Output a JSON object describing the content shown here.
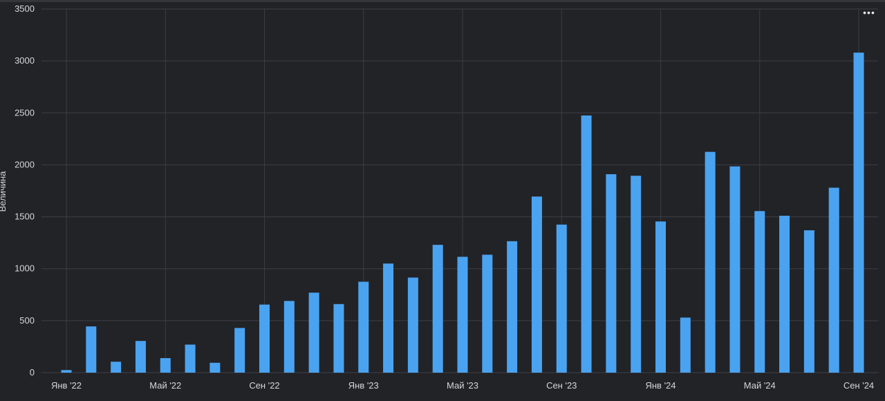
{
  "chart_data": {
    "type": "bar",
    "ylabel": "Величина",
    "ylim": [
      0,
      3500
    ],
    "yticks": [
      0,
      500,
      1000,
      1500,
      2000,
      2500,
      3000,
      3500
    ],
    "categories": [
      "2022-01",
      "2022-02",
      "2022-03",
      "2022-04",
      "2022-05",
      "2022-06",
      "2022-07",
      "2022-08",
      "2022-09",
      "2022-10",
      "2022-11",
      "2022-12",
      "2023-01",
      "2023-02",
      "2023-03",
      "2023-04",
      "2023-05",
      "2023-06",
      "2023-07",
      "2023-08",
      "2023-09",
      "2023-10",
      "2023-11",
      "2023-12",
      "2024-01",
      "2024-02",
      "2024-03",
      "2024-04",
      "2024-05",
      "2024-06",
      "2024-07",
      "2024-08",
      "2024-09"
    ],
    "values": [
      25,
      445,
      105,
      305,
      140,
      270,
      95,
      430,
      655,
      690,
      770,
      660,
      875,
      1050,
      915,
      1230,
      1115,
      1135,
      1265,
      1695,
      1425,
      2475,
      1910,
      1895,
      1455,
      530,
      2125,
      1985,
      1555,
      1510,
      1370,
      1780,
      3080
    ],
    "xtick_labels": [
      "Янв '22",
      "Май '22",
      "Сен '22",
      "Янв '23",
      "Май '23",
      "Сен '23",
      "Янв '24",
      "Май '24",
      "Сен '24"
    ],
    "xtick_indices": [
      0,
      4,
      8,
      12,
      16,
      20,
      24,
      28,
      32
    ],
    "grid": true,
    "colors": {
      "bar": "#4aa3f0",
      "background": "#222327",
      "grid": "#3e4047",
      "text": "#d6d7da"
    }
  },
  "menu": {
    "icon": "more-horizontal-icon",
    "label": "•••"
  }
}
